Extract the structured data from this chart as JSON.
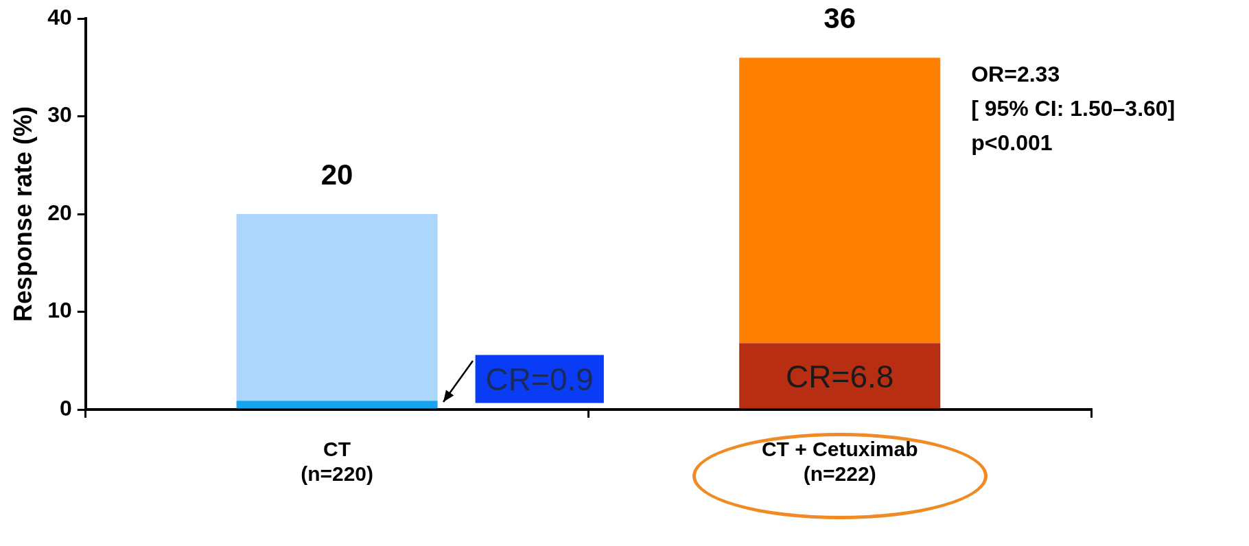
{
  "chart_data": {
    "type": "bar",
    "stacked": true,
    "ylabel": "Response rate (%)",
    "categories": [
      "CT\n(n=220)",
      "CT + Cetuximab\n(n=222)"
    ],
    "series": [
      {
        "colors": [
          "#18a4f0",
          "#b82e12"
        ],
        "values": [
          0.9,
          6.8
        ],
        "value_labels": [
          "CR=0.9",
          "CR=6.8"
        ]
      },
      {
        "colors": [
          "#acd6fc",
          "#ff7f00"
        ],
        "values": [
          19.1,
          29.2
        ]
      }
    ],
    "totals": [
      "20",
      "36"
    ],
    "ylim": [
      0,
      40
    ],
    "yticks": [
      0,
      10,
      20,
      30,
      40
    ],
    "grid": false,
    "legend": false,
    "annotations": [
      "OR=2.33",
      "[ 95% CI: 1.50–3.60]",
      "p<0.001"
    ]
  }
}
